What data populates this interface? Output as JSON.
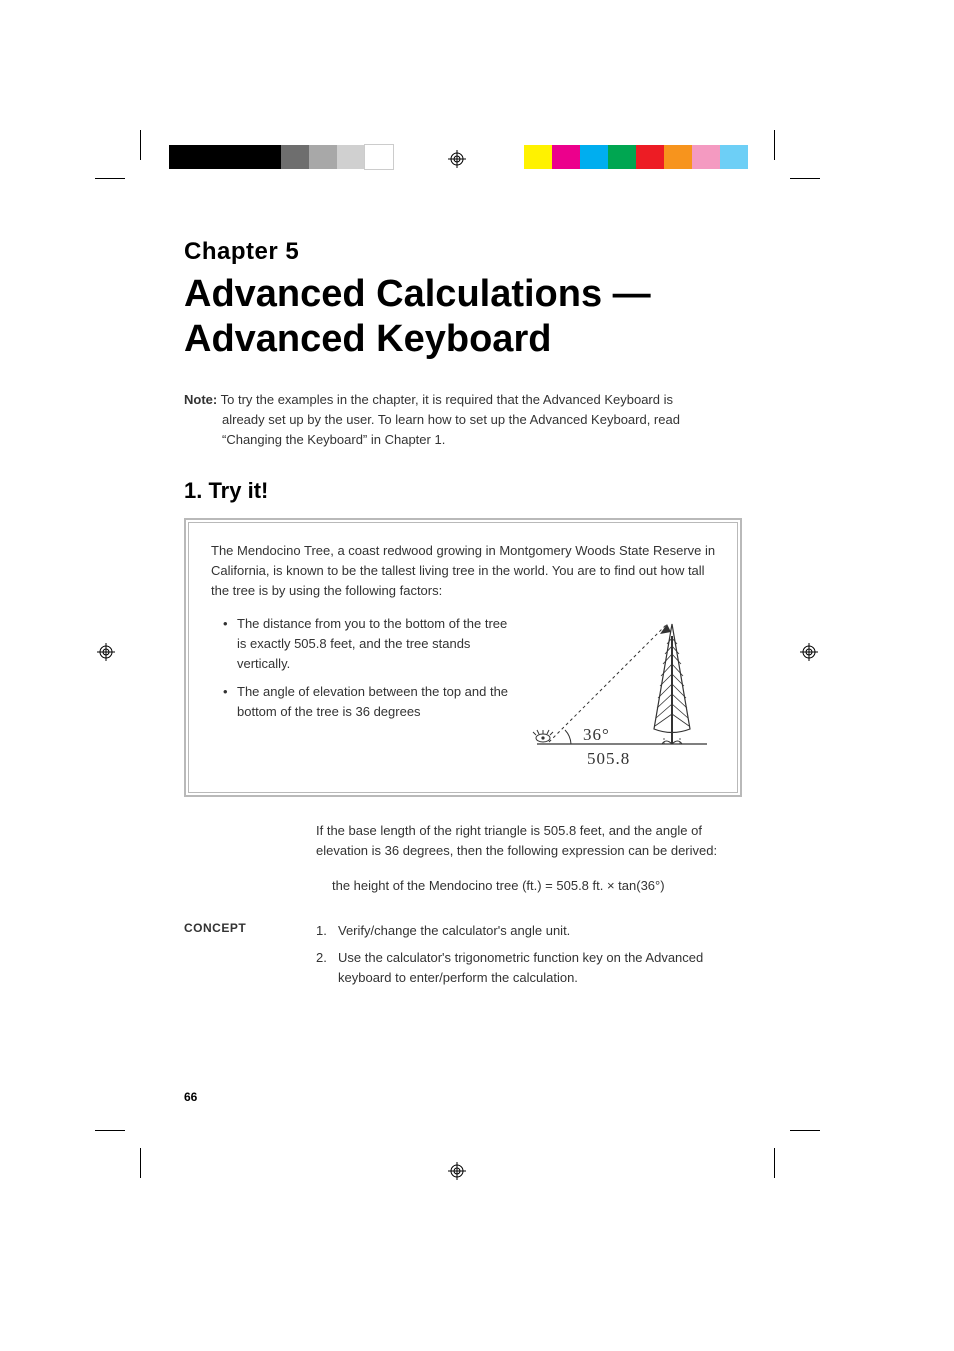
{
  "printer_marks": {
    "grayscale_swatches": [
      "#000000",
      "#000000",
      "#000000",
      "#000000",
      "#6e6e6e",
      "#a8a8a8",
      "#d0d0d0",
      "#ffffff"
    ],
    "color_swatches": [
      "#fff200",
      "#ec008c",
      "#00aeef",
      "#00a651",
      "#ed1c24",
      "#f7941d",
      "#f49ac1",
      "#6dcff6"
    ],
    "crop_mark_color": "#000000",
    "reg_mark_color": "#000000"
  },
  "chapter": {
    "label": "Chapter 5",
    "title_line1": "Advanced Calculations —",
    "title_line2": "Advanced Keyboard"
  },
  "note": {
    "label": "Note:",
    "line1": "To try the examples in the chapter, it is required that the Advanced Keyboard is",
    "line2": "already set up by the user. To learn how to set up the Advanced Keyboard, read",
    "line3": "“Changing the Keyboard” in Chapter 1."
  },
  "section1": {
    "heading": "1. Try it!",
    "intro": "The Mendocino Tree, a coast redwood growing in Montgomery Woods State Reserve in California, is known to be the tallest living tree in the world. You are to find out how tall the tree is by using the following factors:",
    "bullet1": "The distance from you to the bottom of the tree is exactly 505.8 feet, and the tree stands vertically.",
    "bullet2": "The angle of elevation between the top and the bottom of the tree is 36 degrees",
    "diagram": {
      "angle_label": "36°",
      "base_label": "505.8",
      "angle_deg": 36,
      "base_ft": 505.8,
      "stroke_color": "#333333",
      "dash_pattern": "3,3"
    },
    "after_para": "If the base length of the right triangle is 505.8 feet, and the angle of elevation is 36 degrees, then the following expression can be derived:",
    "formula": "the height of the Mendocino tree (ft.) = 505.8 ft. × tan(36°)"
  },
  "concept": {
    "label": "CONCEPT",
    "step1_num": "1.",
    "step1": "Verify/change the calculator's angle unit.",
    "step2_num": "2.",
    "step2": "Use the calculator's trigonometric function key on the Advanced keyboard to enter/perform the calculation."
  },
  "page_number": "66",
  "typography": {
    "body_font": "Arial, Helvetica, sans-serif",
    "body_size_pt": 10,
    "heading_title_size_pt": 29,
    "heading_chapter_size_pt": 18,
    "section_size_pt": 16,
    "text_color": "#333333",
    "heading_color": "#000000",
    "background": "#ffffff",
    "box_border_color": "#b9b9b9"
  }
}
